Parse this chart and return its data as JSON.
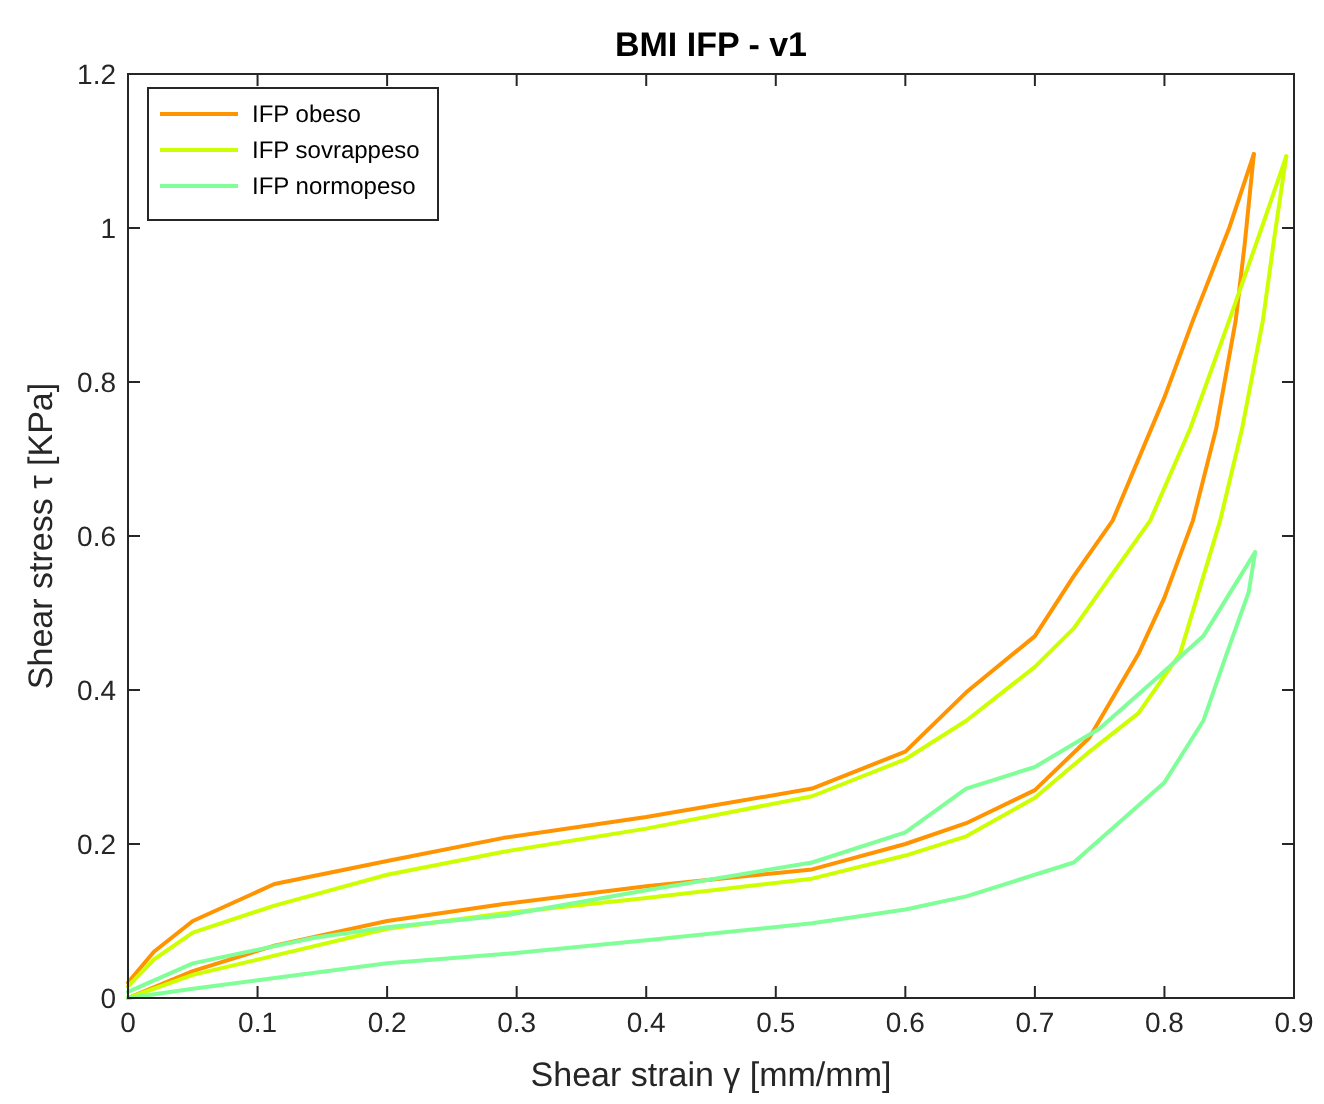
{
  "chart_data": {
    "type": "line",
    "title": "BMI IFP - v1",
    "xlabel": "Shear strain γ [mm/mm]",
    "ylabel": "Shear stress τ [KPa]",
    "xlim": [
      0,
      0.9
    ],
    "ylim": [
      0,
      1.2
    ],
    "xticks": [
      0,
      0.1,
      0.2,
      0.3,
      0.4,
      0.5,
      0.6,
      0.7,
      0.8,
      0.9
    ],
    "yticks": [
      0,
      0.2,
      0.4,
      0.6,
      0.8,
      1,
      1.2
    ],
    "grid": false,
    "legend": "top left",
    "marker": "none",
    "line_style": "solid",
    "series": [
      {
        "name": "IFP obeso",
        "color": "#ff9400",
        "x": [
          0,
          0.02,
          0.05,
          0.113,
          0.2,
          0.29,
          0.4,
          0.528,
          0.6,
          0.647,
          0.7,
          0.73,
          0.76,
          0.8,
          0.822,
          0.85,
          0.869
        ],
        "values": [
          0.02,
          0.06,
          0.1,
          0.148,
          0.178,
          0.208,
          0.235,
          0.272,
          0.32,
          0.397,
          0.47,
          0.548,
          0.62,
          0.78,
          0.88,
          1.0,
          1.096
        ]
      },
      {
        "color": "#ff9400",
        "x": [
          0,
          0.05,
          0.113,
          0.2,
          0.29,
          0.4,
          0.528,
          0.6,
          0.647,
          0.7,
          0.742,
          0.78,
          0.8,
          0.822,
          0.84,
          0.855,
          0.862,
          0.869
        ],
        "values": [
          0,
          0.035,
          0.068,
          0.1,
          0.122,
          0.145,
          0.167,
          0.2,
          0.227,
          0.27,
          0.338,
          0.447,
          0.52,
          0.62,
          0.74,
          0.88,
          0.98,
          1.096
        ]
      },
      {
        "name": "IFP sovrappeso",
        "color": "#ccff00",
        "x": [
          0,
          0.02,
          0.05,
          0.113,
          0.2,
          0.29,
          0.4,
          0.528,
          0.6,
          0.647,
          0.7,
          0.73,
          0.789,
          0.82,
          0.85,
          0.875,
          0.894
        ],
        "values": [
          0.015,
          0.05,
          0.085,
          0.12,
          0.16,
          0.19,
          0.22,
          0.262,
          0.31,
          0.36,
          0.43,
          0.48,
          0.62,
          0.74,
          0.88,
          1.0,
          1.093
        ]
      },
      {
        "color": "#ccff00",
        "x": [
          0,
          0.05,
          0.113,
          0.2,
          0.29,
          0.4,
          0.528,
          0.6,
          0.647,
          0.7,
          0.74,
          0.78,
          0.812,
          0.843,
          0.86,
          0.876,
          0.885,
          0.894
        ],
        "values": [
          0,
          0.03,
          0.055,
          0.09,
          0.11,
          0.13,
          0.155,
          0.185,
          0.21,
          0.26,
          0.317,
          0.37,
          0.447,
          0.62,
          0.74,
          0.88,
          0.99,
          1.093
        ]
      },
      {
        "name": "IFP normopeso",
        "color": "#80ff99",
        "x": [
          0,
          0.05,
          0.143,
          0.2,
          0.29,
          0.4,
          0.528,
          0.6,
          0.647,
          0.7,
          0.75,
          0.795,
          0.83,
          0.87
        ],
        "values": [
          0.008,
          0.045,
          0.078,
          0.092,
          0.107,
          0.14,
          0.176,
          0.215,
          0.272,
          0.3,
          0.35,
          0.417,
          0.47,
          0.579
        ]
      },
      {
        "color": "#80ff99",
        "x": [
          0,
          0.05,
          0.1,
          0.2,
          0.29,
          0.4,
          0.528,
          0.6,
          0.647,
          0.73,
          0.8,
          0.83,
          0.848,
          0.865,
          0.87
        ],
        "values": [
          0,
          0.012,
          0.023,
          0.045,
          0.057,
          0.075,
          0.097,
          0.115,
          0.132,
          0.176,
          0.28,
          0.36,
          0.447,
          0.527,
          0.579
        ]
      }
    ]
  }
}
